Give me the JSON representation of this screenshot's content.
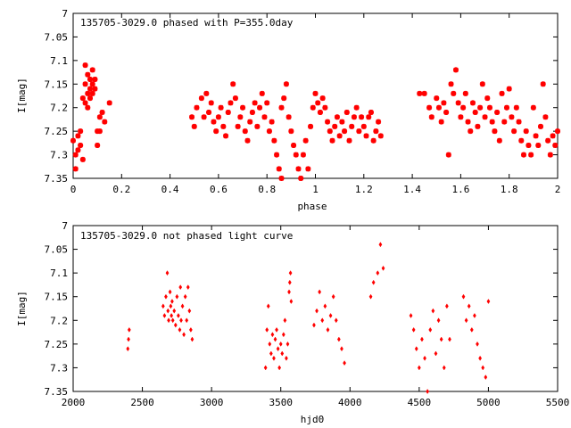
{
  "chart_data": [
    {
      "type": "scatter",
      "title": "135705-3029.0 phased with P=355.0day",
      "xlabel": "phase",
      "ylabel": "I[mag]",
      "xlim": [
        0,
        2
      ],
      "ylim": [
        7,
        7.35
      ],
      "y_inverted": true,
      "xticks": [
        0,
        0.2,
        0.4,
        0.6,
        0.8,
        1,
        1.2,
        1.4,
        1.6,
        1.8,
        2
      ],
      "xtick_labels": [
        "0",
        "0.2",
        "0.4",
        "0.6",
        "0.8",
        "1",
        "1.2",
        "1.4",
        "1.6",
        "1.8",
        "2"
      ],
      "yticks": [
        7,
        7.05,
        7.1,
        7.15,
        7.2,
        7.25,
        7.3,
        7.35
      ],
      "ytick_labels": [
        "7",
        "7.05",
        "7.1",
        "7.15",
        "7.2",
        "7.25",
        "7.3",
        "7.35"
      ],
      "marker_color": "#ff0000",
      "grid": false,
      "series": [
        {
          "x": [
            0.0,
            0.01,
            0.01,
            0.02,
            0.02,
            0.03,
            0.03,
            0.04,
            0.04,
            0.05,
            0.05,
            0.05,
            0.06,
            0.06,
            0.06,
            0.07,
            0.07,
            0.07,
            0.08,
            0.08,
            0.08,
            0.09,
            0.09,
            0.1,
            0.1,
            0.11,
            0.11,
            0.12,
            0.13,
            0.15,
            0.49,
            0.5,
            0.51,
            0.53,
            0.54,
            0.55,
            0.56,
            0.57,
            0.58,
            0.59,
            0.6,
            0.61,
            0.62,
            0.63,
            0.64,
            0.65,
            0.66,
            0.67,
            0.68,
            0.69,
            0.7,
            0.71,
            0.72,
            0.73,
            0.74,
            0.75,
            0.76,
            0.77,
            0.78,
            0.79,
            0.8,
            0.81,
            0.82,
            0.83,
            0.84,
            0.85,
            0.86,
            0.86,
            0.87,
            0.88,
            0.89,
            0.9,
            0.91,
            0.92,
            0.93,
            0.94,
            0.95,
            0.96,
            0.97,
            0.98,
            0.99,
            1.0,
            1.01,
            1.02,
            1.03,
            1.04,
            1.05,
            1.06,
            1.07,
            1.08,
            1.09,
            1.1,
            1.11,
            1.12,
            1.13,
            1.14,
            1.15,
            1.16,
            1.17,
            1.18,
            1.19,
            1.2,
            1.21,
            1.22,
            1.23,
            1.24,
            1.25,
            1.26,
            1.27,
            1.43,
            1.45,
            1.47,
            1.48,
            1.5,
            1.51,
            1.52,
            1.53,
            1.54,
            1.55,
            1.56,
            1.57,
            1.58,
            1.59,
            1.6,
            1.61,
            1.62,
            1.63,
            1.64,
            1.65,
            1.66,
            1.67,
            1.68,
            1.69,
            1.7,
            1.71,
            1.72,
            1.73,
            1.74,
            1.75,
            1.76,
            1.77,
            1.78,
            1.79,
            1.8,
            1.81,
            1.82,
            1.83,
            1.84,
            1.85,
            1.86,
            1.87,
            1.88,
            1.89,
            1.9,
            1.91,
            1.92,
            1.93,
            1.94,
            1.95,
            1.96,
            1.97,
            1.98,
            1.99,
            2.0
          ],
          "y": [
            7.27,
            7.3,
            7.33,
            7.26,
            7.29,
            7.25,
            7.28,
            7.18,
            7.31,
            7.15,
            7.11,
            7.19,
            7.13,
            7.17,
            7.2,
            7.14,
            7.16,
            7.18,
            7.12,
            7.15,
            7.17,
            7.14,
            7.16,
            7.25,
            7.28,
            7.22,
            7.25,
            7.21,
            7.23,
            7.19,
            7.22,
            7.24,
            7.2,
            7.18,
            7.22,
            7.17,
            7.21,
            7.19,
            7.23,
            7.25,
            7.22,
            7.2,
            7.24,
            7.26,
            7.21,
            7.19,
            7.15,
            7.18,
            7.24,
            7.22,
            7.2,
            7.25,
            7.27,
            7.23,
            7.21,
            7.19,
            7.24,
            7.2,
            7.17,
            7.22,
            7.19,
            7.25,
            7.23,
            7.27,
            7.3,
            7.33,
            7.35,
            7.2,
            7.18,
            7.15,
            7.22,
            7.25,
            7.28,
            7.3,
            7.33,
            7.35,
            7.3,
            7.27,
            7.33,
            7.24,
            7.2,
            7.17,
            7.19,
            7.21,
            7.18,
            7.2,
            7.23,
            7.25,
            7.27,
            7.24,
            7.22,
            7.26,
            7.23,
            7.25,
            7.21,
            7.27,
            7.24,
            7.22,
            7.2,
            7.25,
            7.22,
            7.24,
            7.26,
            7.22,
            7.21,
            7.27,
            7.25,
            7.23,
            7.26,
            7.17,
            7.17,
            7.2,
            7.22,
            7.18,
            7.2,
            7.23,
            7.19,
            7.21,
            7.3,
            7.15,
            7.17,
            7.12,
            7.19,
            7.22,
            7.2,
            7.17,
            7.23,
            7.25,
            7.19,
            7.21,
            7.24,
            7.2,
            7.15,
            7.22,
            7.18,
            7.2,
            7.23,
            7.25,
            7.21,
            7.27,
            7.17,
            7.23,
            7.2,
            7.16,
            7.22,
            7.25,
            7.2,
            7.23,
            7.27,
            7.3,
            7.25,
            7.28,
            7.3,
            7.2,
            7.26,
            7.28,
            7.24,
            7.15,
            7.22,
            7.27,
            7.3,
            7.26,
            7.28,
            7.25
          ]
        }
      ]
    },
    {
      "type": "scatter",
      "title": "135705-3029.0 not phased light curve",
      "xlabel": "hjd0",
      "ylabel": "I[mag]",
      "xlim": [
        2000,
        5500
      ],
      "ylim": [
        7,
        7.35
      ],
      "y_inverted": true,
      "xticks": [
        2000,
        2500,
        3000,
        3500,
        4000,
        4500,
        5000,
        5500
      ],
      "xtick_labels": [
        "2000",
        "2500",
        "3000",
        "3500",
        "4000",
        "4500",
        "5000",
        "5500"
      ],
      "yticks": [
        7,
        7.05,
        7.1,
        7.15,
        7.2,
        7.25,
        7.3,
        7.35
      ],
      "ytick_labels": [
        "7",
        "7.05",
        "7.1",
        "7.15",
        "7.2",
        "7.25",
        "7.3",
        "7.35"
      ],
      "marker_color": "#ff0000",
      "grid": false,
      "series": [
        {
          "x": [
            2395,
            2400,
            2405,
            2650,
            2660,
            2670,
            2680,
            2685,
            2690,
            2700,
            2705,
            2710,
            2715,
            2720,
            2730,
            2740,
            2750,
            2760,
            2770,
            2775,
            2780,
            2790,
            2800,
            2810,
            2820,
            2830,
            2840,
            2850,
            2860,
            3390,
            3400,
            3410,
            3420,
            3430,
            3440,
            3450,
            3460,
            3470,
            3480,
            3490,
            3500,
            3510,
            3520,
            3530,
            3540,
            3550,
            3560,
            3565,
            3570,
            3575,
            3740,
            3760,
            3780,
            3800,
            3820,
            3840,
            3860,
            3880,
            3900,
            3920,
            3940,
            3960,
            4150,
            4170,
            4200,
            4220,
            4240,
            4440,
            4460,
            4480,
            4500,
            4520,
            4540,
            4560,
            4580,
            4600,
            4620,
            4640,
            4660,
            4680,
            4700,
            4720,
            4820,
            4840,
            4860,
            4880,
            4900,
            4920,
            4940,
            4960,
            4980,
            5000
          ],
          "y": [
            7.26,
            7.24,
            7.22,
            7.17,
            7.19,
            7.15,
            7.1,
            7.18,
            7.2,
            7.14,
            7.17,
            7.19,
            7.16,
            7.2,
            7.18,
            7.21,
            7.15,
            7.19,
            7.22,
            7.13,
            7.2,
            7.17,
            7.23,
            7.15,
            7.2,
            7.13,
            7.18,
            7.22,
            7.24,
            7.3,
            7.22,
            7.17,
            7.25,
            7.27,
            7.23,
            7.28,
            7.24,
            7.22,
            7.26,
            7.3,
            7.25,
            7.27,
            7.23,
            7.2,
            7.28,
            7.25,
            7.14,
            7.12,
            7.1,
            7.16,
            7.21,
            7.18,
            7.14,
            7.2,
            7.17,
            7.22,
            7.19,
            7.15,
            7.2,
            7.24,
            7.26,
            7.29,
            7.15,
            7.12,
            7.1,
            7.04,
            7.09,
            7.19,
            7.22,
            7.26,
            7.3,
            7.24,
            7.28,
            7.35,
            7.22,
            7.18,
            7.27,
            7.2,
            7.24,
            7.3,
            7.17,
            7.24,
            7.15,
            7.2,
            7.17,
            7.22,
            7.19,
            7.25,
            7.28,
            7.3,
            7.32,
            7.16
          ]
        }
      ]
    }
  ]
}
